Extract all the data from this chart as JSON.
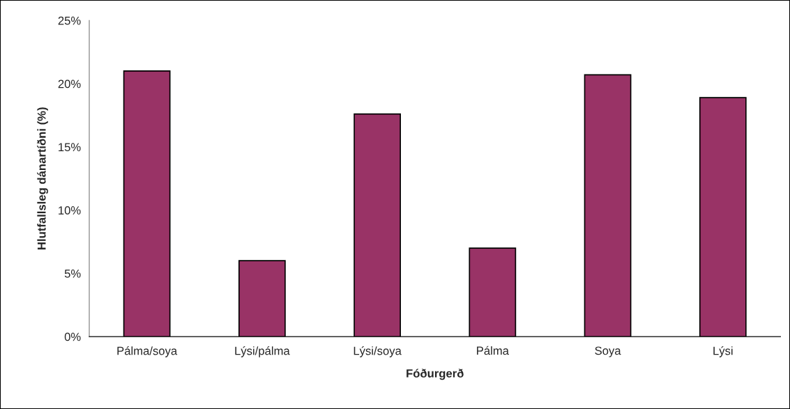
{
  "chart_data": {
    "type": "bar",
    "xlabel": "Fóðurgerð",
    "ylabel": "Hlutfallsleg dánartíðni (%)",
    "categories": [
      "Pálma/soya",
      "Lýsi/pálma",
      "Lýsi/soya",
      "Pálma",
      "Soya",
      "Lýsi"
    ],
    "values": [
      21.0,
      6.0,
      17.6,
      7.0,
      20.7,
      18.9
    ],
    "color": "#993366",
    "ylim": [
      0,
      25
    ],
    "yticks": [
      {
        "value": 0,
        "label": "0%"
      },
      {
        "value": 5,
        "label": "5%"
      },
      {
        "value": 10,
        "label": "10%"
      },
      {
        "value": 15,
        "label": "15%"
      },
      {
        "value": 20,
        "label": "20%"
      },
      {
        "value": 25,
        "label": "25%"
      }
    ],
    "grid": false,
    "legend": false
  }
}
